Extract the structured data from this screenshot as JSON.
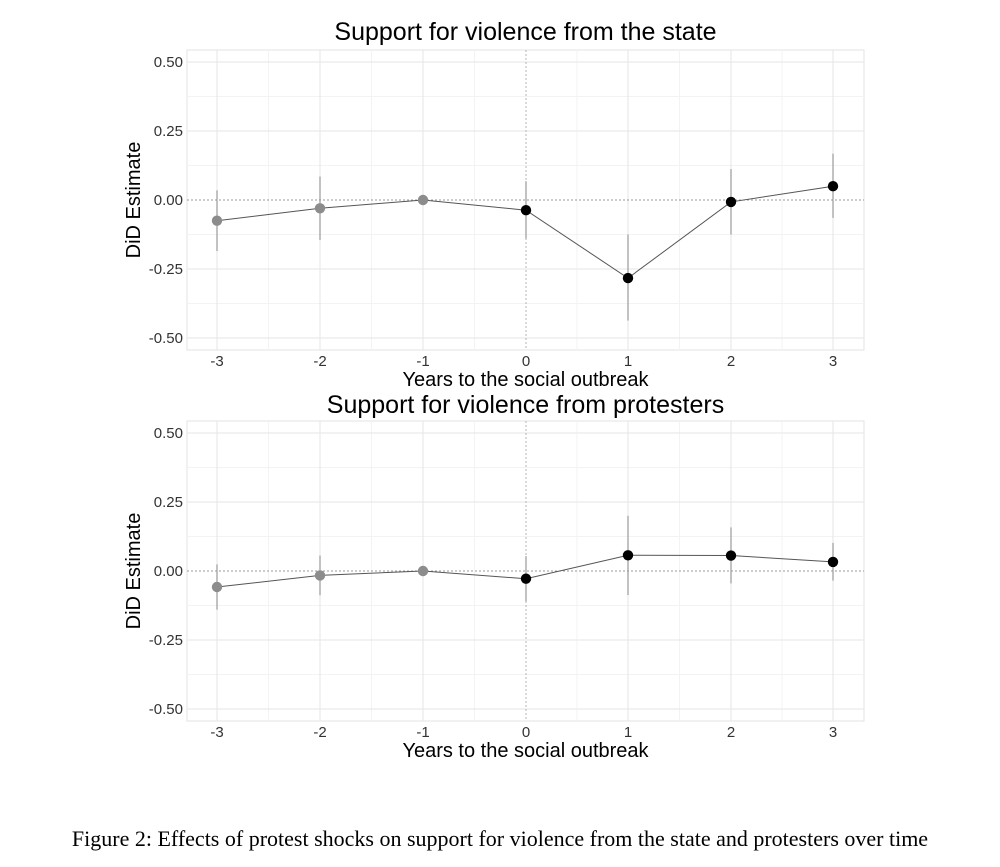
{
  "caption": "Figure 2: Effects of protest shocks on support for violence from the state and protesters over time",
  "colors": {
    "pre_period": "#8c8c8c",
    "post_period": "#000000",
    "line": "#555555",
    "error_bar": "#9a9a9a"
  },
  "chart_data": [
    {
      "type": "line",
      "title": "Support for violence from the state",
      "xlabel": "Years to the social outbreak",
      "ylabel": "DiD Estimate",
      "xlim": [
        -3,
        3
      ],
      "ylim": [
        -0.5,
        0.5
      ],
      "x_ticks": [
        "-3",
        "-2",
        "-1",
        "0",
        "1",
        "2",
        "3"
      ],
      "y_ticks": [
        "0.50",
        "0.25",
        "0.00",
        "-0.25",
        "-0.50"
      ],
      "y_tick_values": [
        0.5,
        0.25,
        0,
        -0.25,
        -0.5
      ],
      "grid": true,
      "reference_lines": {
        "horizontal_at": 0,
        "vertical_at": 0
      },
      "x": [
        -3,
        -2,
        -1,
        0,
        1,
        2,
        3
      ],
      "estimate": [
        -0.075,
        -0.03,
        0.0,
        -0.037,
        -0.283,
        -0.007,
        0.05
      ],
      "ci_low": [
        -0.185,
        -0.145,
        0.0,
        -0.14,
        -0.437,
        -0.125,
        -0.065
      ],
      "ci_high": [
        0.035,
        0.085,
        0.0,
        0.068,
        -0.125,
        0.112,
        0.168
      ]
    },
    {
      "type": "line",
      "title": "Support for violence from protesters",
      "xlabel": "Years to the social outbreak",
      "ylabel": "DiD Estimate",
      "xlim": [
        -3,
        3
      ],
      "ylim": [
        -0.5,
        0.5
      ],
      "x_ticks": [
        "-3",
        "-2",
        "-1",
        "0",
        "1",
        "2",
        "3"
      ],
      "y_ticks": [
        "0.50",
        "0.25",
        "0.00",
        "-0.25",
        "-0.50"
      ],
      "y_tick_values": [
        0.5,
        0.25,
        0,
        -0.25,
        -0.5
      ],
      "grid": true,
      "reference_lines": {
        "horizontal_at": 0,
        "vertical_at": 0
      },
      "x": [
        -3,
        -2,
        -1,
        0,
        1,
        2,
        3
      ],
      "estimate": [
        -0.058,
        -0.016,
        0.0,
        -0.028,
        0.057,
        0.056,
        0.033
      ],
      "ci_low": [
        -0.14,
        -0.088,
        0.0,
        -0.11,
        -0.087,
        -0.045,
        -0.035
      ],
      "ci_high": [
        0.024,
        0.056,
        0.0,
        0.054,
        0.2,
        0.158,
        0.102
      ]
    }
  ]
}
